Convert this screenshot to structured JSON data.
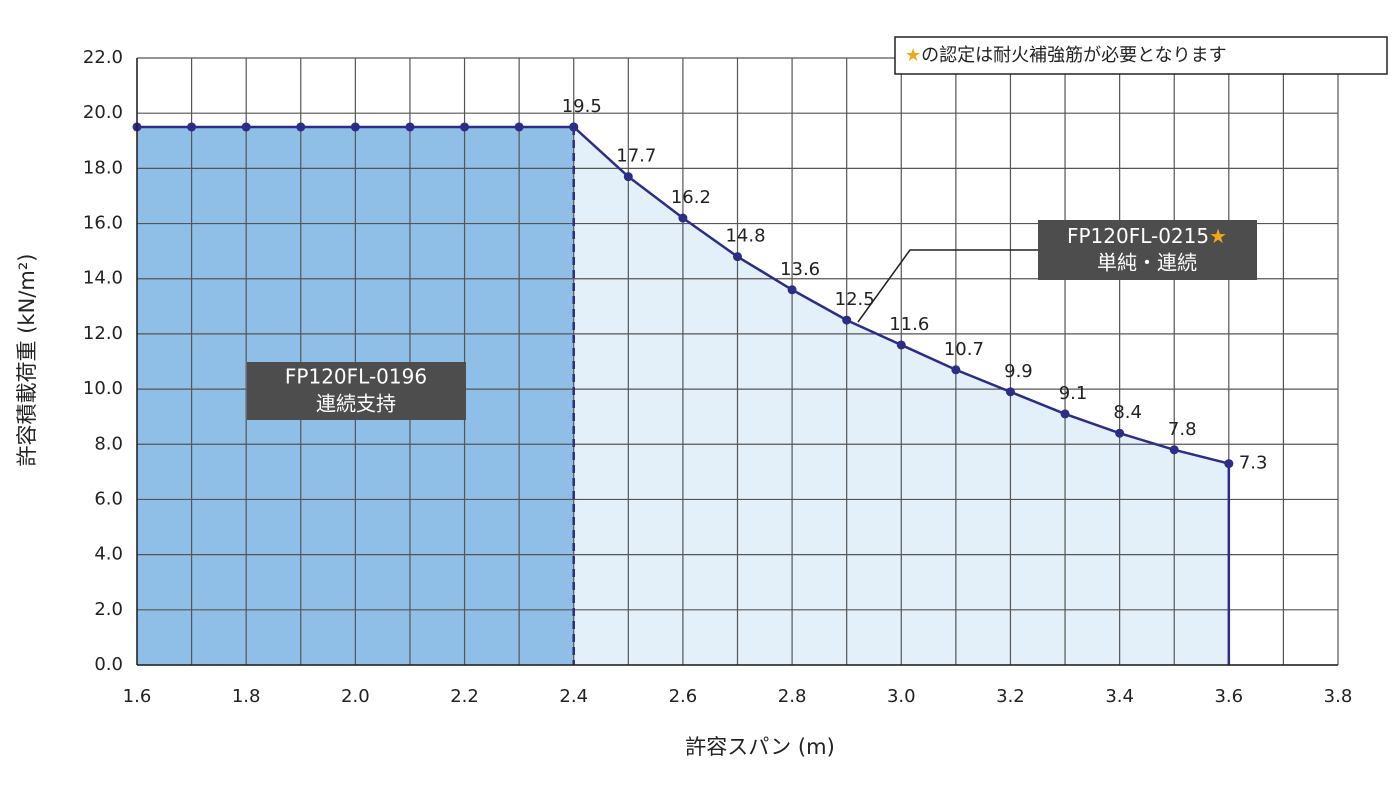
{
  "chart_data": {
    "type": "area-line",
    "xlabel": "許容スパン (m)",
    "ylabel": "許容積載荷重 (kN/m²)",
    "xlim": [
      1.6,
      3.8
    ],
    "ylim": [
      0,
      22
    ],
    "xticks": [
      1.6,
      1.8,
      {
        "value": 2,
        "label": "2.0"
      },
      2.2,
      2.4,
      2.6,
      2.8,
      {
        "value": 3,
        "label": "3.0"
      },
      3.2,
      3.4,
      3.6,
      3.8
    ],
    "xgrid": [
      1.7,
      1.9,
      2.1,
      2.3,
      2.5,
      2.7,
      2.9,
      3.1,
      3.3,
      3.5,
      3.7
    ],
    "yticks": [
      {
        "value": 0,
        "label": "0.0"
      },
      {
        "value": 2,
        "label": "2.0"
      },
      {
        "value": 4,
        "label": "4.0"
      },
      {
        "value": 6,
        "label": "6.0"
      },
      {
        "value": 8,
        "label": "8.0"
      },
      {
        "value": 10,
        "label": "10.0"
      },
      {
        "value": 12,
        "label": "12.0"
      },
      {
        "value": 14,
        "label": "14.0"
      },
      {
        "value": 16,
        "label": "16.0"
      },
      {
        "value": 18,
        "label": "18.0"
      },
      {
        "value": 20,
        "label": "20.0"
      },
      {
        "value": 22,
        "label": "22.0"
      }
    ],
    "grid": true,
    "line_color": "#2b2d86",
    "series": [
      {
        "color": "#8fbfe7",
        "end_line": "dashed",
        "labels": false,
        "x": [
          1.6,
          1.7,
          1.8,
          1.9,
          2.0,
          2.1,
          2.2,
          2.3,
          2.4
        ],
        "values": [
          19.5,
          19.5,
          19.5,
          19.5,
          19.5,
          19.5,
          19.5,
          19.5,
          19.5
        ]
      },
      {
        "color": "#e3f0fa",
        "end_line": "solid",
        "labels": true,
        "x": [
          2.4,
          2.5,
          2.6,
          2.7,
          2.8,
          2.9,
          3.0,
          3.1,
          3.2,
          3.3,
          3.4,
          3.5,
          3.6
        ],
        "values": [
          19.5,
          17.7,
          16.2,
          14.8,
          13.6,
          12.5,
          11.6,
          10.7,
          9.9,
          9.1,
          8.4,
          7.8,
          7.3
        ]
      }
    ],
    "annotations": [
      {
        "line1": "FP120FL-0196",
        "line2": "連続支持"
      },
      {
        "line1": "FP120FL-0215",
        "mark": "★",
        "line2": "単純・連続"
      }
    ],
    "note_mark": "★",
    "note": "の認定は耐火補強筋が必要となります"
  }
}
